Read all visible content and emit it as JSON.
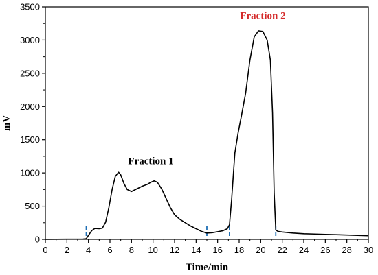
{
  "chart_data": {
    "type": "line",
    "xlabel": "Time/min",
    "ylabel": "mV",
    "xlim": [
      0,
      30
    ],
    "ylim": [
      0,
      3500
    ],
    "x_ticks": [
      0,
      2,
      4,
      6,
      8,
      10,
      12,
      14,
      16,
      18,
      20,
      22,
      24,
      26,
      28,
      30
    ],
    "y_ticks": [
      0,
      500,
      1000,
      1500,
      2000,
      2500,
      3000,
      3500
    ],
    "grid": false,
    "series": [
      {
        "color": "#000000",
        "points": [
          [
            0.0,
            0
          ],
          [
            1.0,
            2
          ],
          [
            2.0,
            3
          ],
          [
            3.0,
            3
          ],
          [
            3.5,
            5
          ],
          [
            3.8,
            10
          ],
          [
            4.0,
            60
          ],
          [
            4.3,
            130
          ],
          [
            4.6,
            165
          ],
          [
            5.0,
            160
          ],
          [
            5.3,
            170
          ],
          [
            5.6,
            260
          ],
          [
            5.9,
            480
          ],
          [
            6.2,
            750
          ],
          [
            6.5,
            950
          ],
          [
            6.8,
            1010
          ],
          [
            7.0,
            970
          ],
          [
            7.3,
            840
          ],
          [
            7.6,
            750
          ],
          [
            8.0,
            720
          ],
          [
            8.5,
            760
          ],
          [
            9.0,
            800
          ],
          [
            9.5,
            830
          ],
          [
            9.8,
            860
          ],
          [
            10.1,
            880
          ],
          [
            10.4,
            860
          ],
          [
            10.8,
            760
          ],
          [
            11.2,
            620
          ],
          [
            11.6,
            480
          ],
          [
            12.0,
            370
          ],
          [
            12.5,
            300
          ],
          [
            13.0,
            250
          ],
          [
            13.5,
            200
          ],
          [
            14.0,
            160
          ],
          [
            14.5,
            120
          ],
          [
            15.0,
            95
          ],
          [
            15.5,
            100
          ],
          [
            16.0,
            115
          ],
          [
            16.5,
            130
          ],
          [
            16.9,
            160
          ],
          [
            17.1,
            220
          ],
          [
            17.3,
            600
          ],
          [
            17.6,
            1300
          ],
          [
            17.9,
            1600
          ],
          [
            18.2,
            1850
          ],
          [
            18.6,
            2200
          ],
          [
            19.0,
            2700
          ],
          [
            19.4,
            3050
          ],
          [
            19.8,
            3140
          ],
          [
            20.2,
            3130
          ],
          [
            20.6,
            3000
          ],
          [
            20.9,
            2700
          ],
          [
            21.1,
            1900
          ],
          [
            21.25,
            700
          ],
          [
            21.4,
            140
          ],
          [
            21.6,
            120
          ],
          [
            22.0,
            110
          ],
          [
            23.0,
            95
          ],
          [
            24.0,
            85
          ],
          [
            25.0,
            80
          ],
          [
            26.0,
            75
          ],
          [
            27.0,
            70
          ],
          [
            28.0,
            65
          ],
          [
            29.0,
            60
          ],
          [
            30.0,
            55
          ]
        ]
      }
    ],
    "markers": {
      "color": "#1f6fb5",
      "x": [
        3.8,
        15.0,
        17.1,
        21.4
      ]
    },
    "annotations": [
      {
        "text": "Fraction 1",
        "x": 9.8,
        "y": 1130,
        "color": "#000000"
      },
      {
        "text": "Fraction 2",
        "x": 20.2,
        "y": 3320,
        "color": "#d42a2a"
      }
    ]
  }
}
